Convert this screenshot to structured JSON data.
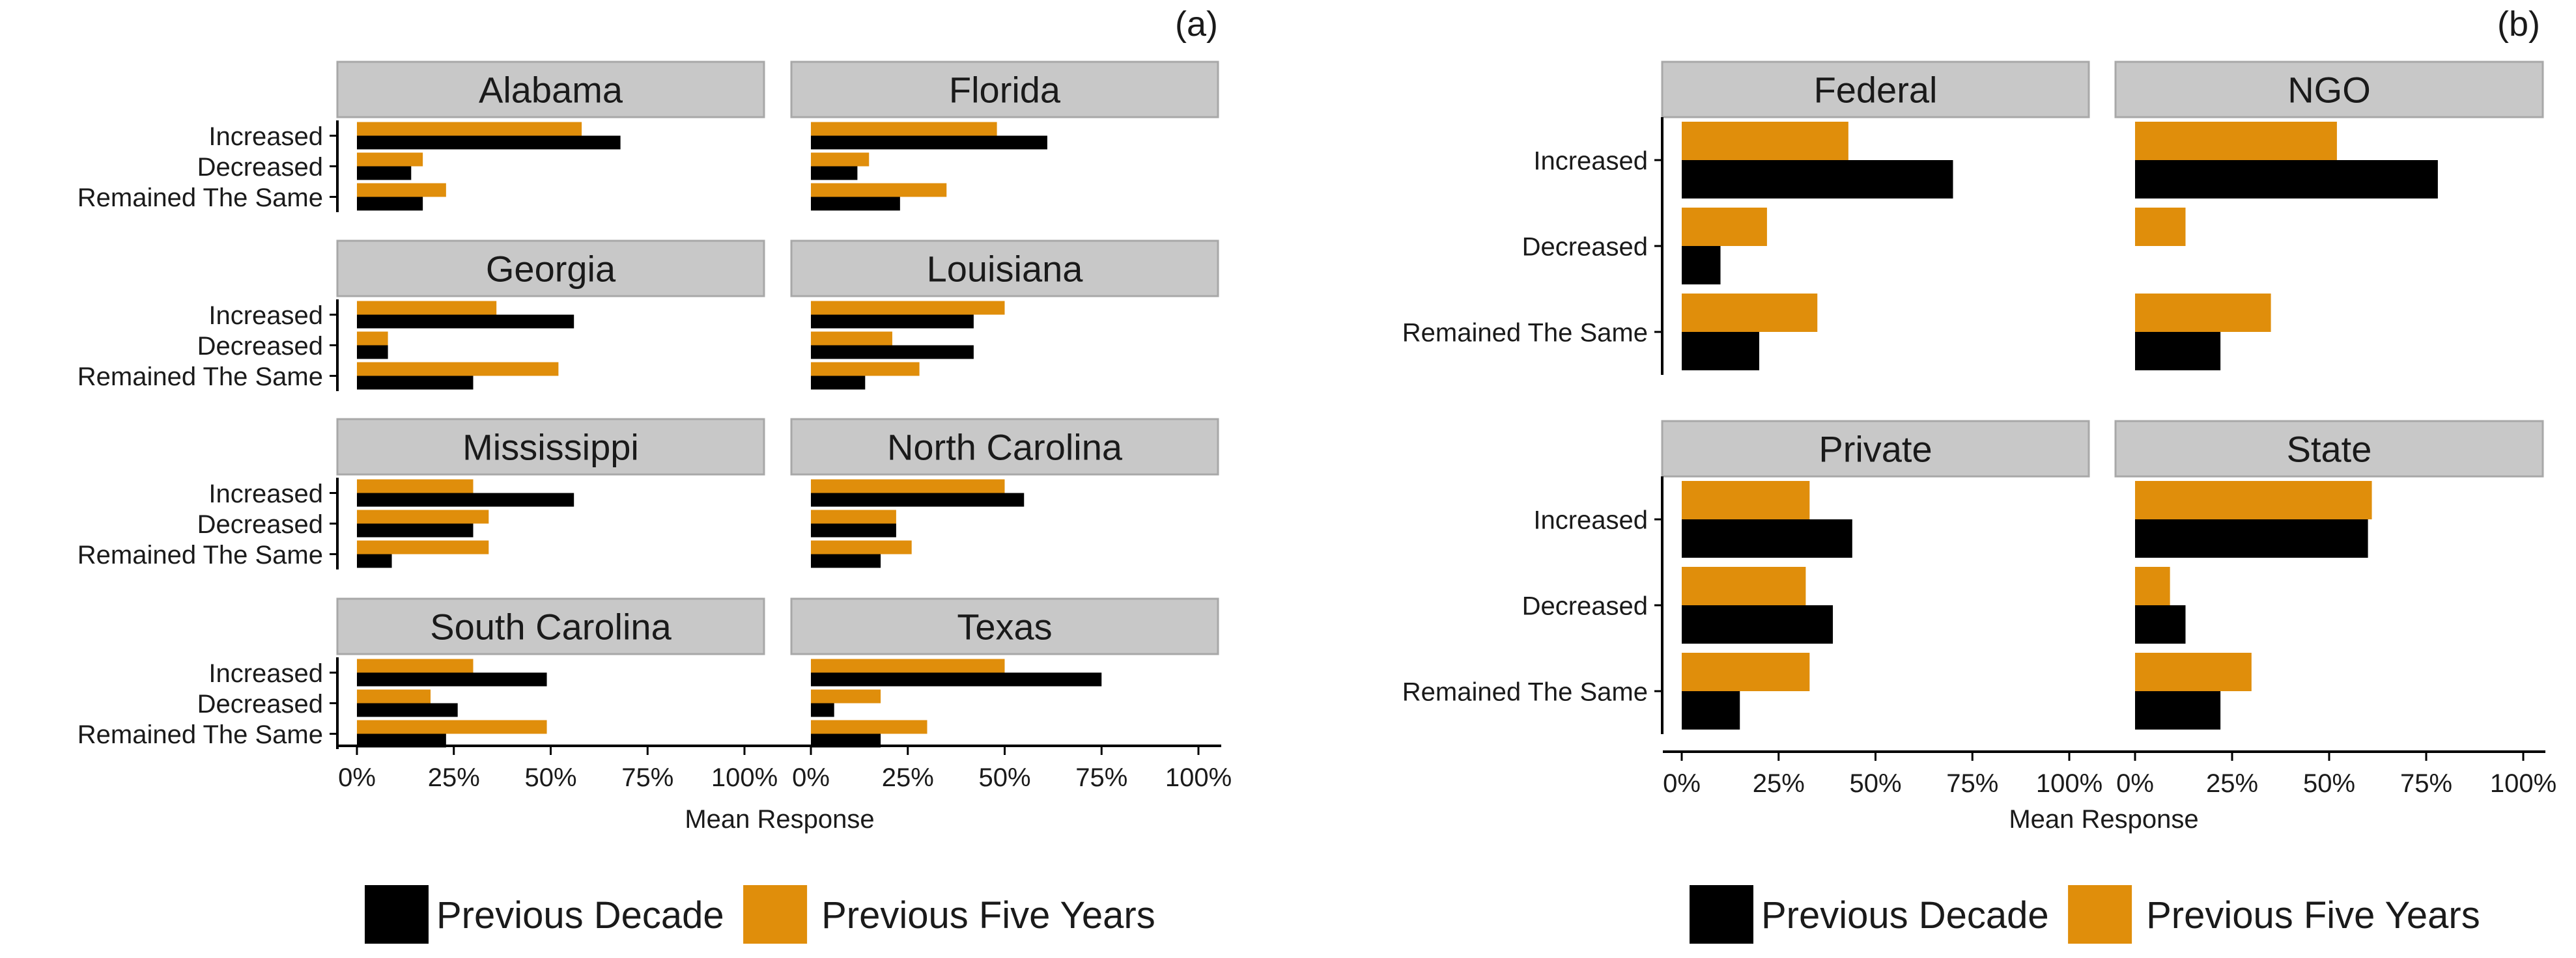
{
  "colors": {
    "previous_decade": "#000000",
    "previous_five_years": "#E08E0B",
    "strip_fill": "#C8C8C8",
    "strip_stroke": "#A8A8A8"
  },
  "legend": {
    "previous_decade": "Previous Decade",
    "previous_five_years": "Previous Five Years"
  },
  "chart_data": [
    {
      "type": "bar",
      "orientation": "horizontal",
      "panel_label": "(a)",
      "xlabel": "Mean Response",
      "xlim": [
        0,
        100
      ],
      "x_ticks": [
        "0%",
        "25%",
        "50%",
        "75%",
        "100%"
      ],
      "categories": [
        "Increased",
        "Decreased",
        "Remained The Same"
      ],
      "series_names": [
        "Previous Five Years",
        "Previous Decade"
      ],
      "facets": [
        {
          "title": "Alabama",
          "series": [
            {
              "name": "Previous Five Years",
              "values": [
                58,
                17,
                23
              ]
            },
            {
              "name": "Previous Decade",
              "values": [
                68,
                14,
                17
              ]
            }
          ]
        },
        {
          "title": "Florida",
          "series": [
            {
              "name": "Previous Five Years",
              "values": [
                48,
                15,
                35
              ]
            },
            {
              "name": "Previous Decade",
              "values": [
                61,
                12,
                23
              ]
            }
          ]
        },
        {
          "title": "Georgia",
          "series": [
            {
              "name": "Previous Five Years",
              "values": [
                36,
                8,
                52
              ]
            },
            {
              "name": "Previous Decade",
              "values": [
                56,
                8,
                30
              ]
            }
          ]
        },
        {
          "title": "Louisiana",
          "series": [
            {
              "name": "Previous Five Years",
              "values": [
                50,
                21,
                28
              ]
            },
            {
              "name": "Previous Decade",
              "values": [
                42,
                42,
                14
              ]
            }
          ]
        },
        {
          "title": "Mississippi",
          "series": [
            {
              "name": "Previous Five Years",
              "values": [
                30,
                34,
                34
              ]
            },
            {
              "name": "Previous Decade",
              "values": [
                56,
                30,
                9
              ]
            }
          ]
        },
        {
          "title": "North Carolina",
          "series": [
            {
              "name": "Previous Five Years",
              "values": [
                50,
                22,
                26
              ]
            },
            {
              "name": "Previous Decade",
              "values": [
                55,
                22,
                18
              ]
            }
          ]
        },
        {
          "title": "South Carolina",
          "series": [
            {
              "name": "Previous Five Years",
              "values": [
                30,
                19,
                49
              ]
            },
            {
              "name": "Previous Decade",
              "values": [
                49,
                26,
                23
              ]
            }
          ]
        },
        {
          "title": "Texas",
          "series": [
            {
              "name": "Previous Five Years",
              "values": [
                50,
                18,
                30
              ]
            },
            {
              "name": "Previous Decade",
              "values": [
                75,
                6,
                18
              ]
            }
          ]
        }
      ]
    },
    {
      "type": "bar",
      "orientation": "horizontal",
      "panel_label": "(b)",
      "xlabel": "Mean Response",
      "xlim": [
        0,
        100
      ],
      "x_ticks": [
        "0%",
        "25%",
        "50%",
        "75%",
        "100%"
      ],
      "categories": [
        "Increased",
        "Decreased",
        "Remained The Same"
      ],
      "series_names": [
        "Previous Five Years",
        "Previous Decade"
      ],
      "facets": [
        {
          "title": "Federal",
          "series": [
            {
              "name": "Previous Five Years",
              "values": [
                43,
                22,
                35
              ]
            },
            {
              "name": "Previous Decade",
              "values": [
                70,
                10,
                20
              ]
            }
          ]
        },
        {
          "title": "NGO",
          "series": [
            {
              "name": "Previous Five Years",
              "values": [
                52,
                13,
                35
              ]
            },
            {
              "name": "Previous Decade",
              "values": [
                78,
                0,
                22
              ]
            }
          ]
        },
        {
          "title": "Private",
          "series": [
            {
              "name": "Previous Five Years",
              "values": [
                33,
                32,
                33
              ]
            },
            {
              "name": "Previous Decade",
              "values": [
                44,
                39,
                15
              ]
            }
          ]
        },
        {
          "title": "State",
          "series": [
            {
              "name": "Previous Five Years",
              "values": [
                61,
                9,
                30
              ]
            },
            {
              "name": "Previous Decade",
              "values": [
                60,
                13,
                22
              ]
            }
          ]
        }
      ]
    }
  ]
}
